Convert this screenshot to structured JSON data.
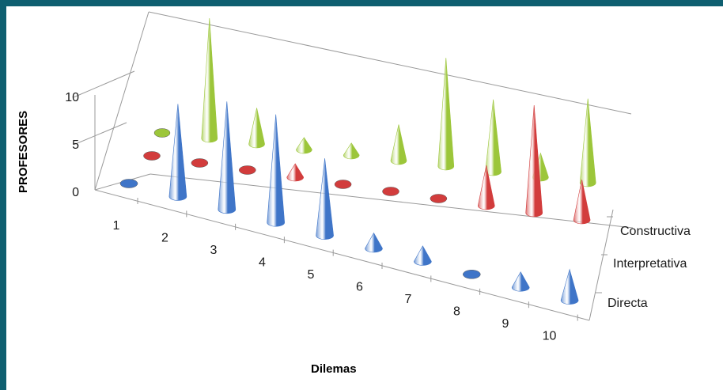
{
  "chart_data": {
    "type": "3d-cone-column",
    "title": "",
    "xlabel": "Dilemas",
    "ylabel": "PROFESORES",
    "categories": [
      "1",
      "2",
      "3",
      "4",
      "5",
      "6",
      "7",
      "8",
      "9",
      "10"
    ],
    "y_ticks": [
      "0",
      "5",
      "10"
    ],
    "ylim": [
      0,
      10
    ],
    "grid": false,
    "legend": "none (series labeled on depth axis)",
    "series": [
      {
        "name": "Directa",
        "color": "#3f75c8",
        "values": [
          0,
          6,
          7,
          7,
          5,
          1,
          1,
          0,
          1,
          2
        ]
      },
      {
        "name": "Interpretativa",
        "color": "#d23c3c",
        "values": [
          0,
          0,
          0,
          1,
          0,
          0,
          0,
          3,
          8,
          3
        ]
      },
      {
        "name": "Constructiva",
        "color": "#9cc63a",
        "values": [
          0,
          10,
          3,
          1,
          1,
          3,
          9,
          6,
          2,
          7
        ]
      }
    ]
  }
}
